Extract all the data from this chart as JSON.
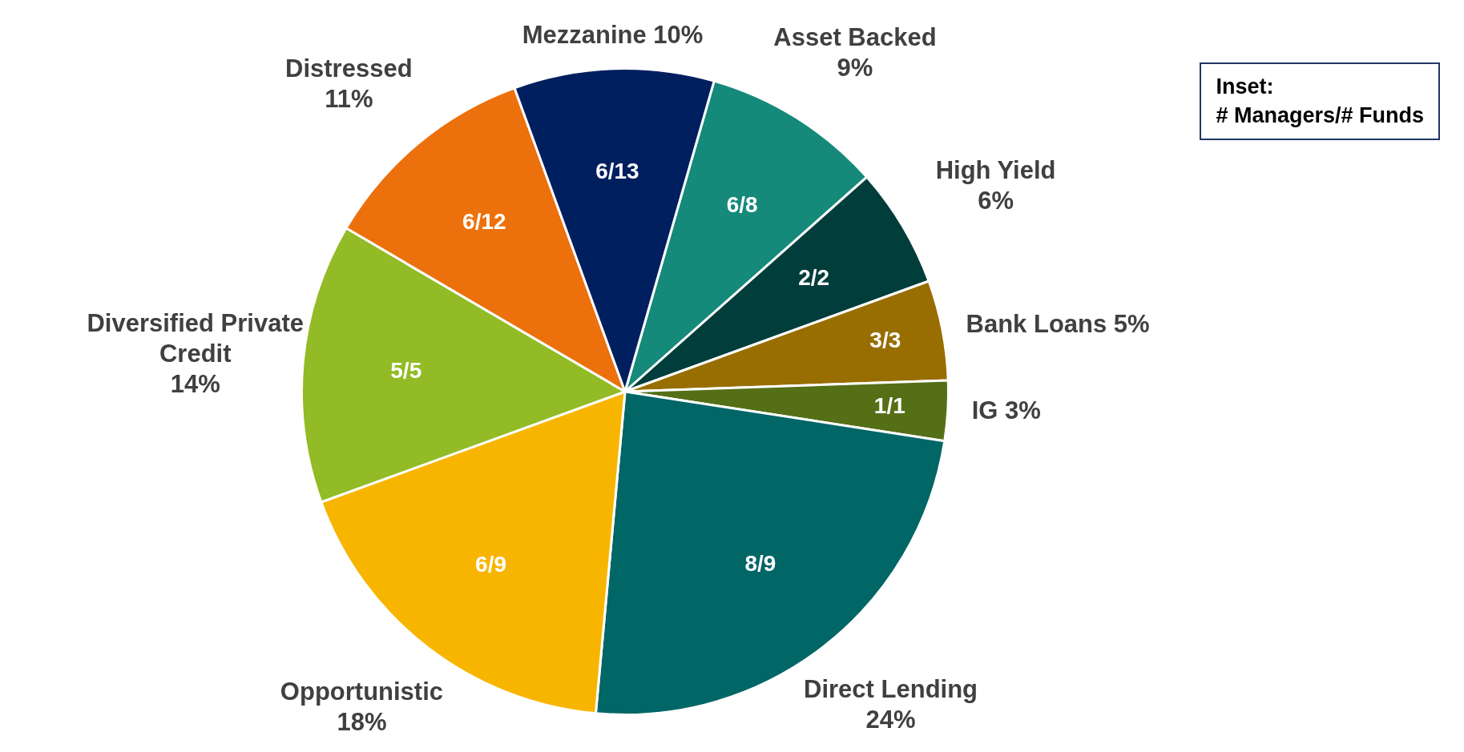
{
  "chart_data": {
    "type": "pie",
    "categories": [
      "Asset Backed",
      "High Yield",
      "Bank Loans",
      "IG",
      "Direct Lending",
      "Opportunistic",
      "Diversified Private Credit",
      "Distressed",
      "Mezzanine"
    ],
    "values": [
      9,
      6,
      5,
      3,
      24,
      18,
      14,
      11,
      10
    ],
    "colors": [
      "#15897a",
      "#013e3b",
      "#986e00",
      "#546f16",
      "#006666",
      "#f8b500",
      "#92bb25",
      "#ec700b",
      "#001f5f"
    ],
    "value_labels": [
      "9%",
      "6%",
      "5%",
      "3%",
      "24%",
      "18%",
      "14%",
      "11%",
      "10%"
    ],
    "legend": false,
    "annotations": [
      {
        "text": "6/8",
        "x": "Asset Backed"
      },
      {
        "text": "2/2",
        "x": "High Yield"
      },
      {
        "text": "3/3",
        "x": "Bank Loans"
      },
      {
        "text": "1/1",
        "x": "IG"
      },
      {
        "text": "8/9",
        "x": "Direct Lending"
      },
      {
        "text": "6/9",
        "x": "Opportunistic"
      },
      {
        "text": "5/5",
        "x": "Diversified Private Credit"
      },
      {
        "text": "6/12",
        "x": "Distressed"
      },
      {
        "text": "6/13",
        "x": "Mezzanine"
      },
      "Inset:\n# Managers/# Funds"
    ]
  }
}
